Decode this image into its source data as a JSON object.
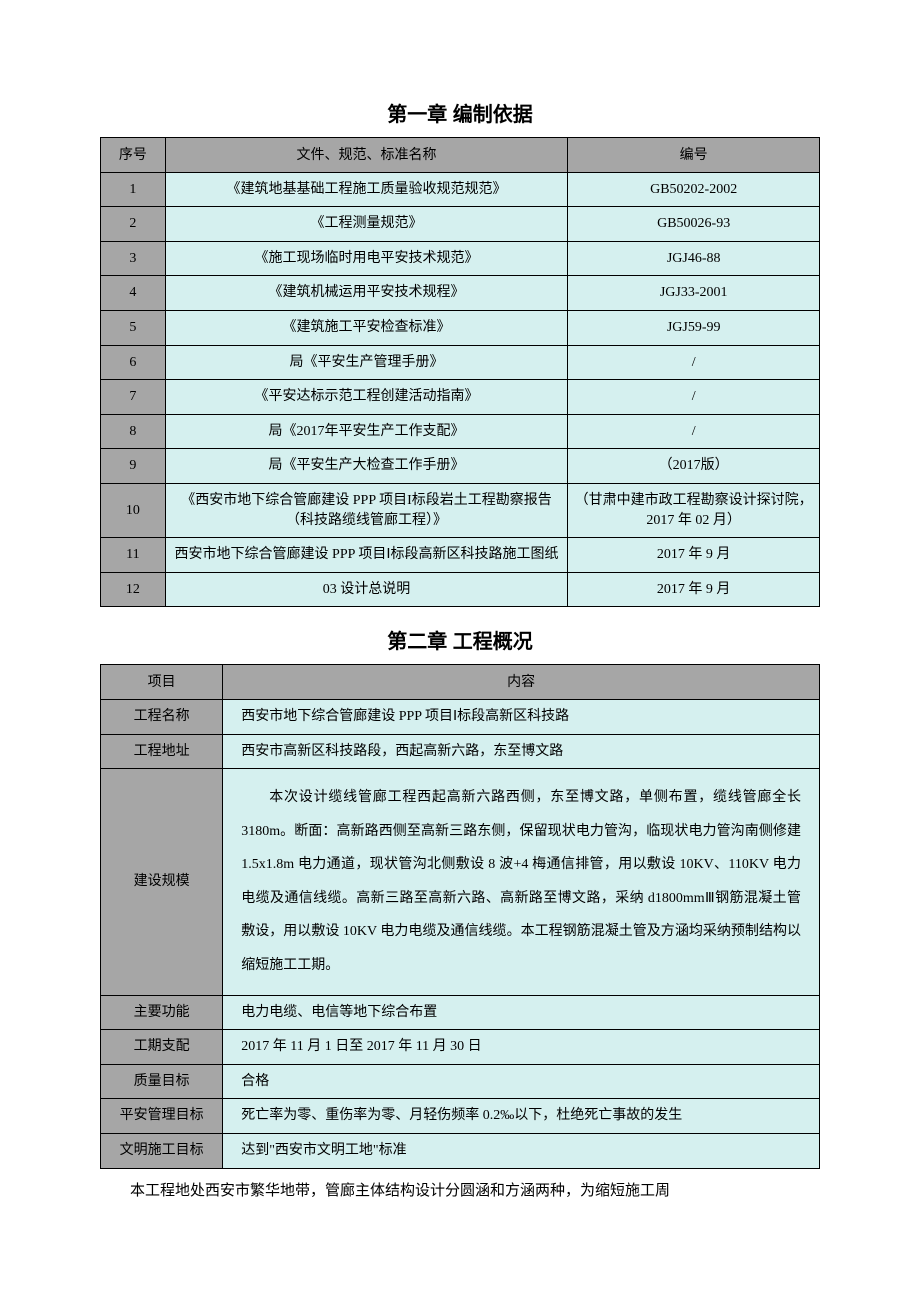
{
  "chapter1": {
    "title": "第一章 编制依据",
    "table": {
      "headers": {
        "col1": "序号",
        "col2": "文件、规范、标准名称",
        "col3": "编号"
      },
      "rows": [
        {
          "idx": "1",
          "name": "《建筑地基基础工程施工质量验收规范规范》",
          "code": "GB50202-2002"
        },
        {
          "idx": "2",
          "name": "《工程测量规范》",
          "code": "GB50026-93"
        },
        {
          "idx": "3",
          "name": "《施工现场临时用电平安技术规范》",
          "code": "JGJ46-88"
        },
        {
          "idx": "4",
          "name": "《建筑机械运用平安技术规程》",
          "code": "JGJ33-2001"
        },
        {
          "idx": "5",
          "name": "《建筑施工平安检查标准》",
          "code": "JGJ59-99"
        },
        {
          "idx": "6",
          "name": "局《平安生产管理手册》",
          "code": "/"
        },
        {
          "idx": "7",
          "name": "《平安达标示范工程创建活动指南》",
          "code": "/"
        },
        {
          "idx": "8",
          "name": "局《2017年平安生产工作支配》",
          "code": "/"
        },
        {
          "idx": "9",
          "name": "局《平安生产大检查工作手册》",
          "code": "（2017版）"
        },
        {
          "idx": "10",
          "name": "《西安市地下综合管廊建设 PPP 项目I标段岩土工程勘察报告（科技路缆线管廊工程）》",
          "code": "（甘肃中建市政工程勘察设计探讨院，2017 年 02 月）"
        },
        {
          "idx": "11",
          "name": "西安市地下综合管廊建设 PPP 项目Ⅰ标段高新区科技路施工图纸",
          "code": "2017 年 9 月"
        },
        {
          "idx": "12",
          "name": "03 设计总说明",
          "code": "2017 年 9 月"
        }
      ]
    }
  },
  "chapter2": {
    "title": "第二章 工程概况",
    "table": {
      "headers": {
        "col1": "项目",
        "col2": "内容"
      },
      "rows": [
        {
          "label": "工程名称",
          "value": "西安市地下综合管廊建设 PPP 项目Ⅰ标段高新区科技路",
          "long": false
        },
        {
          "label": "工程地址",
          "value": "西安市高新区科技路段，西起高新六路，东至博文路",
          "long": false
        },
        {
          "label": "建设规模",
          "value": "本次设计缆线管廊工程西起高新六路西侧，东至博文路，单侧布置，缆线管廊全长 3180m。断面：高新路西侧至高新三路东侧，保留现状电力管沟，临现状电力管沟南侧修建 1.5x1.8m 电力通道，现状管沟北侧敷设 8 波+4 梅通信排管，用以敷设 10KV、110KV 电力电缆及通信线缆。高新三路至高新六路、高新路至博文路，采纳 d1800mmⅢ钢筋混凝土管敷设，用以敷设 10KV 电力电缆及通信线缆。本工程钢筋混凝土管及方涵均采纳预制结构以缩短施工工期。",
          "long": true
        },
        {
          "label": "主要功能",
          "value": "电力电缆、电信等地下综合布置",
          "long": false
        },
        {
          "label": "工期支配",
          "value": "2017 年 11 月 1 日至 2017 年 11 月 30 日",
          "long": false
        },
        {
          "label": "质量目标",
          "value": "合格",
          "long": false
        },
        {
          "label": "平安管理目标",
          "value": "死亡率为零、重伤率为零、月轻伤频率 0.2‰以下，杜绝死亡事故的发生",
          "long": false
        },
        {
          "label": "文明施工目标",
          "value": "达到\"西安市文明工地\"标准",
          "long": false
        }
      ]
    }
  },
  "trailing_paragraph": "本工程地处西安市繁华地带，管廊主体结构设计分圆涵和方涵两种，为缩短施工周",
  "style": {
    "colors": {
      "header_bg": "#a6a6a6",
      "cell_bg": "#d5f0ef",
      "border": "#000000",
      "page_bg": "#ffffff",
      "text": "#000000"
    },
    "fonts": {
      "heading_family": "SimHei",
      "body_family": "SimSun",
      "heading_size_pt": 16,
      "cell_size_pt": 10.5
    },
    "column_widths": {
      "t1": [
        0.09,
        0.56,
        0.35
      ],
      "t2": [
        0.17,
        0.83
      ]
    }
  }
}
